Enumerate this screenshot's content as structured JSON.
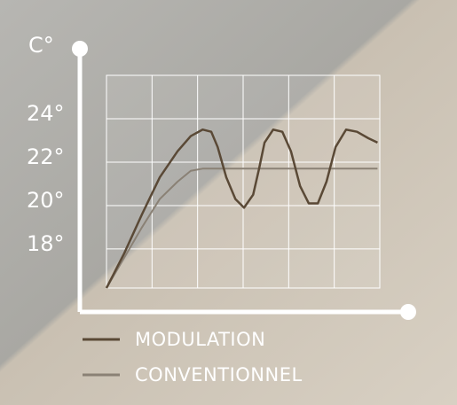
{
  "chart_data": {
    "type": "line",
    "y_label": "C°",
    "x": [
      0,
      0.39,
      0.78,
      1.17,
      1.56,
      1.85,
      2.11,
      2.3,
      2.44,
      2.63,
      2.83,
      3.02,
      3.22,
      3.35,
      3.47,
      3.66,
      3.86,
      4.05,
      4.25,
      4.44,
      4.64,
      4.83,
      5.03,
      5.26,
      5.5,
      5.75,
      5.95
    ],
    "series": [
      {
        "name": "MODULATION",
        "color": "#5a4936",
        "values": [
          16.2,
          17.8,
          19.6,
          21.3,
          22.5,
          23.2,
          23.5,
          23.4,
          22.7,
          21.3,
          20.3,
          19.9,
          20.5,
          21.7,
          22.9,
          23.5,
          23.4,
          22.5,
          20.9,
          20.1,
          20.1,
          21.1,
          22.7,
          23.5,
          23.4,
          23.1,
          22.9
        ]
      },
      {
        "name": "CONVENTIONNEL",
        "color": "#8a8175",
        "values": [
          16.2,
          17.6,
          19.0,
          20.3,
          21.1,
          21.6,
          21.7,
          21.7,
          21.7,
          21.7,
          21.7,
          21.7,
          21.7,
          21.7,
          21.7,
          21.7,
          21.7,
          21.7,
          21.7,
          21.7,
          21.7,
          21.7,
          21.7,
          21.7,
          21.7,
          21.7,
          21.7
        ]
      }
    ],
    "xlim": [
      0,
      6
    ],
    "xticks": [
      0,
      1,
      2,
      3,
      4,
      5,
      6
    ],
    "ylim": [
      16.2,
      26
    ],
    "yticks": [
      {
        "value": 18,
        "label": "18°"
      },
      {
        "value": 20,
        "label": "20°"
      },
      {
        "value": 22,
        "label": "22°"
      },
      {
        "value": 24,
        "label": "24°"
      }
    ],
    "grid": true
  }
}
